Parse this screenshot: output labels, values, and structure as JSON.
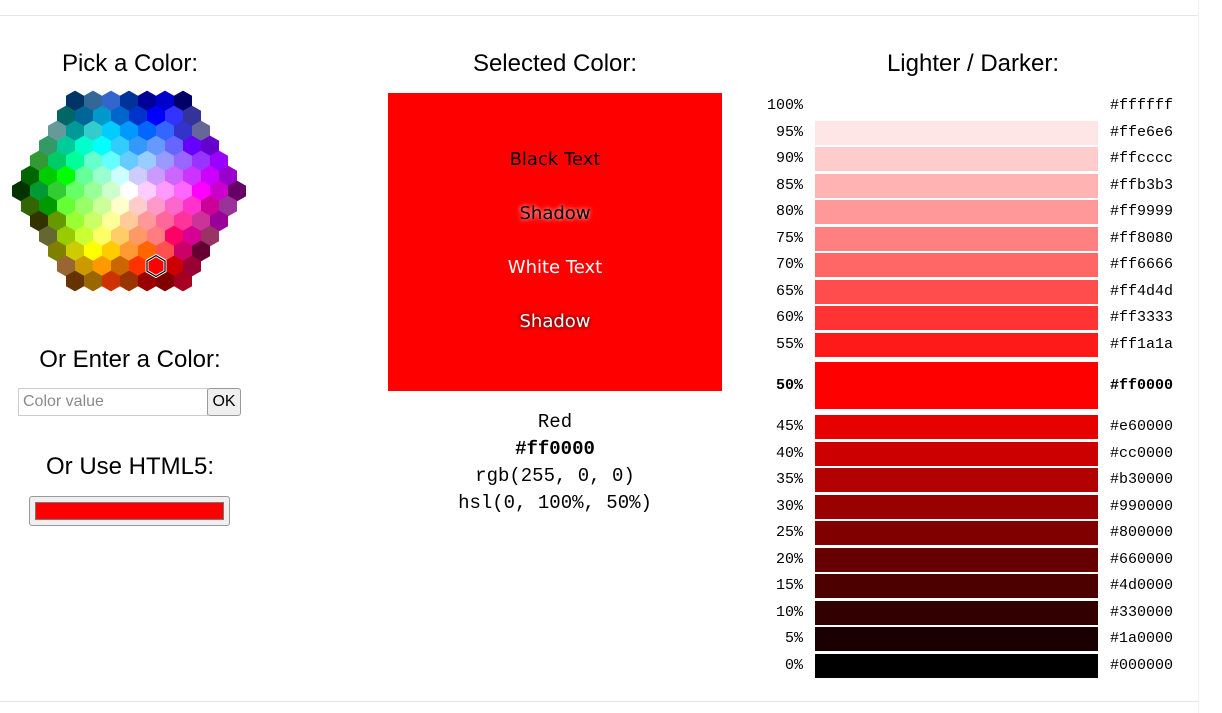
{
  "picker": {
    "title": "Pick a Color:",
    "selected_hex": "#ff0000"
  },
  "enter": {
    "title": "Or Enter a Color:",
    "placeholder": "Color value",
    "value": "",
    "ok_label": "OK"
  },
  "html5": {
    "title": "Or Use HTML5:",
    "value": "#ff0000"
  },
  "selected": {
    "title": "Selected Color:",
    "color": "#ff0000",
    "black_text": "Black Text",
    "black_shadow": "Shadow",
    "white_text": "White Text",
    "white_shadow": "Shadow",
    "name": "Red",
    "hex": "#ff0000",
    "rgb": "rgb(255, 0, 0)",
    "hsl": "hsl(0, 100%, 50%)"
  },
  "lighter_darker": {
    "title": "Lighter / Darker:",
    "rows": [
      {
        "pct": "100%",
        "hex": "#ffffff"
      },
      {
        "pct": "95%",
        "hex": "#ffe6e6"
      },
      {
        "pct": "90%",
        "hex": "#ffcccc"
      },
      {
        "pct": "85%",
        "hex": "#ffb3b3"
      },
      {
        "pct": "80%",
        "hex": "#ff9999"
      },
      {
        "pct": "75%",
        "hex": "#ff8080"
      },
      {
        "pct": "70%",
        "hex": "#ff6666"
      },
      {
        "pct": "65%",
        "hex": "#ff4d4d"
      },
      {
        "pct": "60%",
        "hex": "#ff3333"
      },
      {
        "pct": "55%",
        "hex": "#ff1a1a"
      },
      {
        "pct": "50%",
        "hex": "#ff0000",
        "current": true
      },
      {
        "pct": "45%",
        "hex": "#e60000"
      },
      {
        "pct": "40%",
        "hex": "#cc0000"
      },
      {
        "pct": "35%",
        "hex": "#b30000"
      },
      {
        "pct": "30%",
        "hex": "#990000"
      },
      {
        "pct": "25%",
        "hex": "#800000"
      },
      {
        "pct": "20%",
        "hex": "#660000"
      },
      {
        "pct": "15%",
        "hex": "#4d0000"
      },
      {
        "pct": "10%",
        "hex": "#330000"
      },
      {
        "pct": "5%",
        "hex": "#1a0000"
      },
      {
        "pct": "0%",
        "hex": "#000000"
      }
    ]
  },
  "hex_rows": [
    [
      "#003366",
      "#336699",
      "#3366CC",
      "#003399",
      "#000099",
      "#0000CC",
      "#000066"
    ],
    [
      "#006666",
      "#006699",
      "#0099CC",
      "#0066CC",
      "#0033CC",
      "#0000FF",
      "#3333FF",
      "#333399"
    ],
    [
      "#669999",
      "#009999",
      "#33CCCC",
      "#00CCFF",
      "#0099FF",
      "#0066FF",
      "#3366FF",
      "#3333CC",
      "#666699"
    ],
    [
      "#339966",
      "#00CC99",
      "#00FFCC",
      "#00FFFF",
      "#33CCFF",
      "#3399FF",
      "#6699FF",
      "#6666FF",
      "#6600FF",
      "#6600CC"
    ],
    [
      "#339933",
      "#00CC66",
      "#00FF99",
      "#66FFCC",
      "#66FFFF",
      "#66CCFF",
      "#99CCFF",
      "#9999FF",
      "#9966FF",
      "#9933FF",
      "#9900FF"
    ],
    [
      "#006600",
      "#00CC00",
      "#00FF00",
      "#66FF99",
      "#99FFCC",
      "#CCFFFF",
      "#CCCCFF",
      "#CC99FF",
      "#CC66FF",
      "#CC33FF",
      "#CC00FF",
      "#9900CC"
    ],
    [
      "#003300",
      "#009933",
      "#33CC33",
      "#66FF66",
      "#99FF99",
      "#CCFFCC",
      "#FFFFFF",
      "#FFCCFF",
      "#FF99FF",
      "#FF66FF",
      "#FF00FF",
      "#CC00CC",
      "#660066"
    ],
    [
      "#336600",
      "#009900",
      "#66FF33",
      "#99FF66",
      "#CCFF99",
      "#FFFFCC",
      "#FFCCCC",
      "#FF99CC",
      "#FF66CC",
      "#FF33CC",
      "#CC0099",
      "#993399"
    ],
    [
      "#333300",
      "#669900",
      "#99FF33",
      "#CCFF66",
      "#FFFF99",
      "#FFCC99",
      "#FF9999",
      "#FF6699",
      "#FF3399",
      "#CC3399",
      "#990099"
    ],
    [
      "#666633",
      "#99CC00",
      "#CCFF33",
      "#FFFF66",
      "#FFCC66",
      "#FF9966",
      "#FF7C80",
      "#FF0066",
      "#D60093",
      "#993366"
    ],
    [
      "#808000",
      "#CCCC00",
      "#FFFF00",
      "#FFCC00",
      "#FF9933",
      "#FF6600",
      "#FF5050",
      "#CC0066",
      "#660033"
    ],
    [
      "#996633",
      "#CC9900",
      "#FF9900",
      "#CC6600",
      "#FF3300",
      "#FF0000",
      "#CC0000",
      "#990033"
    ],
    [
      "#663300",
      "#996600",
      "#CC3300",
      "#993300",
      "#990000",
      "#800000",
      "#A50021"
    ]
  ]
}
